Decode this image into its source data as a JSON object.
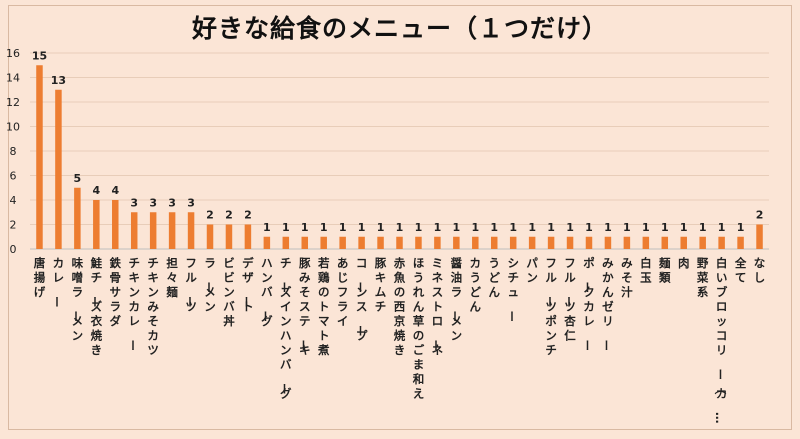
{
  "chart_data": {
    "type": "bar",
    "title": "好きな給食のメニュー（１つだけ）",
    "xlabel": "",
    "ylabel": "",
    "ylim": [
      0,
      16
    ],
    "yticks": [
      0,
      2,
      4,
      6,
      8,
      10,
      12,
      14,
      16
    ],
    "grid": true,
    "legend": "none",
    "bar_color": "#ed7d31",
    "categories": [
      "唐揚げ",
      "カレー",
      "味噌ラーメン",
      "鮭チーズ衣焼き",
      "鉄骨サラダ",
      "チキンカレー",
      "チキンみそカツ",
      "担々麺",
      "フルーツ",
      "ラーメン",
      "ビビンバ丼",
      "デザート",
      "ハンバーグ",
      "チーズインハンバーグ",
      "豚みそステーキ",
      "若鶏のトマト煮",
      "あじフライ",
      "コーンスープ",
      "豚キムチ",
      "赤魚の西京焼き",
      "ほうれん草のごま和え",
      "ミネストローネ",
      "醤油ラーメン",
      "カうどん",
      "うどん",
      "シチュー",
      "パン",
      "フルーツポンチ",
      "フルーツ杏仁",
      "ポークカレー",
      "みかんゼリー",
      "みそ汁",
      "白玉",
      "麺類",
      "肉",
      "野菜系",
      "白いブロッコリー（カ…",
      "全て",
      "なし"
    ],
    "values": [
      15,
      13,
      5,
      4,
      4,
      3,
      3,
      3,
      3,
      2,
      2,
      2,
      1,
      1,
      1,
      1,
      1,
      1,
      1,
      1,
      1,
      1,
      1,
      1,
      1,
      1,
      1,
      1,
      1,
      1,
      1,
      1,
      1,
      1,
      1,
      1,
      1,
      1,
      2
    ]
  }
}
